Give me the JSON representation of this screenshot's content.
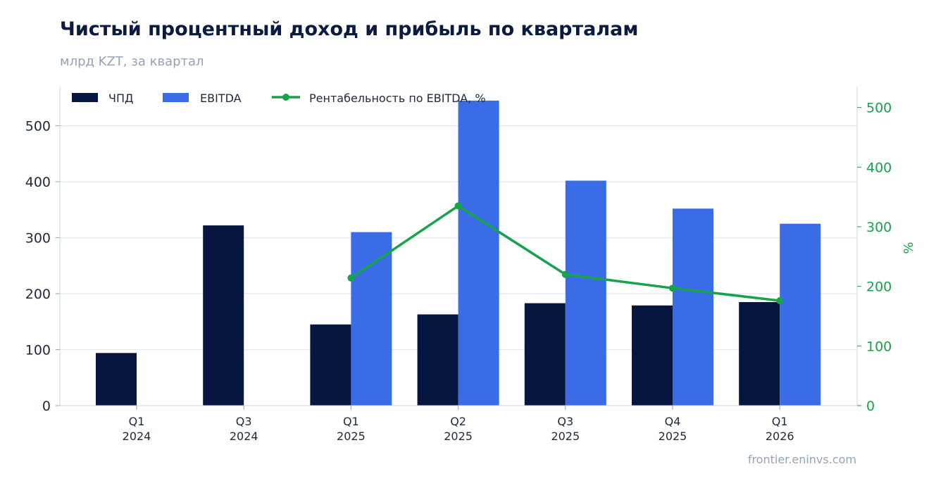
{
  "header": {
    "title": "Чистый процентный доход и прибыль по кварталам",
    "subtitle": "млрд KZT, за квартал"
  },
  "footer": {
    "source": "frontier.eninvs.com"
  },
  "colors": {
    "npd": "#06163f",
    "ebitda": "#3a6ce8",
    "margin": "#16a34a",
    "grid": "#e2e8f0",
    "axis_text": "#1e293b"
  },
  "chart_data": {
    "type": "bar",
    "categories": [
      [
        "Q1",
        "2024"
      ],
      [
        "Q3",
        "2024"
      ],
      [
        "Q1",
        "2025"
      ],
      [
        "Q2",
        "2025"
      ],
      [
        "Q3",
        "2025"
      ],
      [
        "Q4",
        "2025"
      ],
      [
        "Q1",
        "2026"
      ]
    ],
    "series": [
      {
        "name": "ЧПД",
        "type": "bar",
        "axis": "left",
        "values": [
          94,
          322,
          145,
          163,
          183,
          179,
          185
        ]
      },
      {
        "name": "EBITDA",
        "type": "bar",
        "axis": "left",
        "values": [
          null,
          null,
          310,
          545,
          402,
          352,
          325
        ]
      },
      {
        "name": "Рентабельность по EBITDA, %",
        "type": "line",
        "axis": "right",
        "values": [
          null,
          null,
          214,
          335,
          220,
          197,
          176
        ]
      }
    ],
    "y_left": {
      "ylim": [
        0,
        570
      ],
      "ticks": [
        "0",
        "100",
        "200",
        "300",
        "400",
        "500"
      ]
    },
    "y_right": {
      "label": "%",
      "ylim": [
        0,
        535
      ],
      "ticks": [
        "0",
        "100",
        "200",
        "300",
        "400",
        "500"
      ]
    },
    "grid": true,
    "legend": "top-left"
  }
}
